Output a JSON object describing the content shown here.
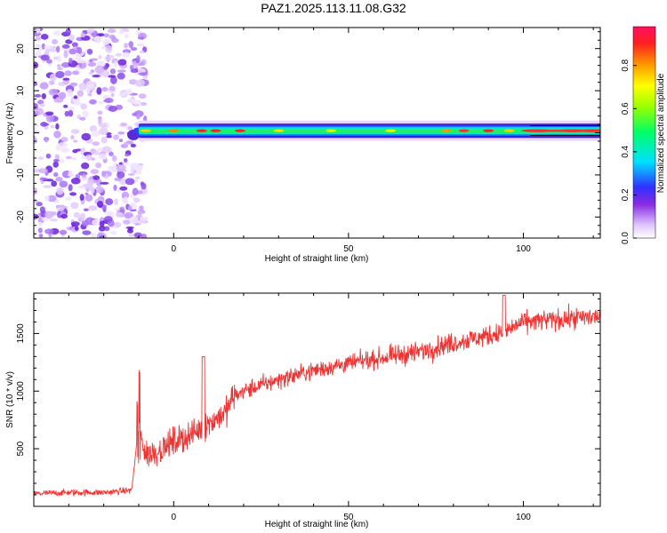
{
  "title": "PAZ1.2025.113.11.08.G32",
  "colors": {
    "snr_line": "#ee3333",
    "axis": "#000000"
  },
  "chart_data": [
    {
      "type": "heatmap",
      "xlabel": "Height of straight line (km)",
      "ylabel": "Frequency (Hz)",
      "xlim": [
        -40,
        122
      ],
      "ylim": [
        -25,
        25
      ],
      "xticks": [
        0,
        50,
        100
      ],
      "yticks": [
        -20,
        -10,
        0,
        10,
        20
      ],
      "colorbar": {
        "label": "Normalized spectral amplitude",
        "range": [
          0,
          0.98
        ],
        "ticks": [
          "0.0",
          "0.2",
          "0.4",
          "0.6",
          "0.8"
        ],
        "colormap": "rainbow (white-violet-blue-cyan-green-yellow-orange-red)"
      },
      "features": {
        "noise_region_height_km": [
          -40,
          -10
        ],
        "signal_line_frequency_hz": 0.5,
        "signal_region_height_km": [
          -10,
          122
        ]
      }
    },
    {
      "type": "line",
      "xlabel": "Height of straight line (km)",
      "ylabel": "SNR (10 * v/v)",
      "xlim": [
        -40,
        122
      ],
      "ylim": [
        0,
        1850
      ],
      "xticks": [
        0,
        50,
        100
      ],
      "yticks": [
        500,
        1000,
        1500
      ],
      "series": [
        {
          "x": [
            -40,
            -30,
            -20,
            -12,
            -10,
            -8,
            -5,
            0,
            5,
            8,
            10,
            15,
            17,
            20,
            30,
            40,
            50,
            60,
            70,
            80,
            90,
            95,
            100,
            110,
            122
          ],
          "y": [
            110,
            120,
            120,
            140,
            700,
            450,
            470,
            560,
            620,
            680,
            720,
            820,
            950,
            1000,
            1100,
            1180,
            1240,
            1290,
            1340,
            1420,
            1480,
            1520,
            1600,
            1620,
            1650
          ]
        }
      ]
    }
  ]
}
